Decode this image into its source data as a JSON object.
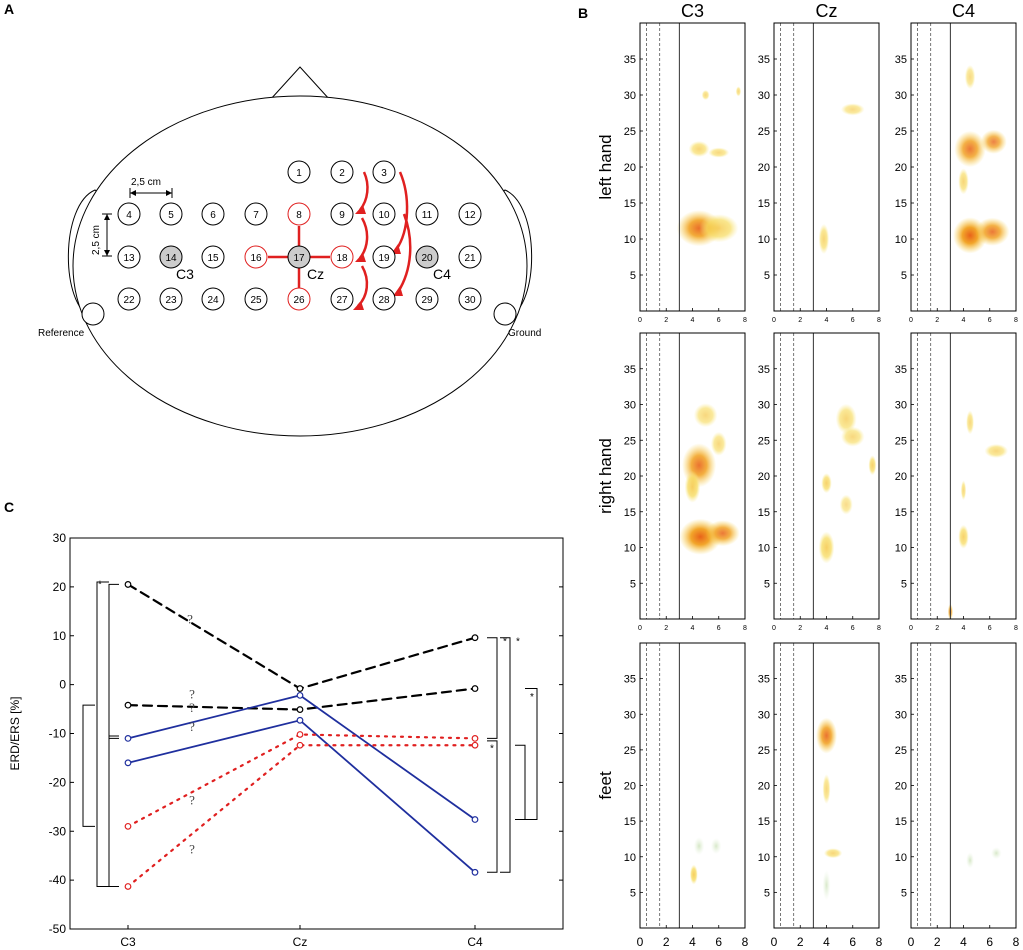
{
  "panel_labels": {
    "a": "A",
    "b": "B",
    "c": "C"
  },
  "panel_a": {
    "scale_h": "2,5 cm",
    "scale_v": "2,5 cm",
    "reference": "Reference",
    "ground": "Ground",
    "site_labels": {
      "c3": "C3",
      "cz": "Cz",
      "c4": "C4"
    },
    "electrodes": [
      {
        "n": "1",
        "row": 0,
        "col": 4,
        "style": "normal"
      },
      {
        "n": "2",
        "row": 0,
        "col": 5,
        "style": "normal"
      },
      {
        "n": "3",
        "row": 0,
        "col": 6,
        "style": "normal"
      },
      {
        "n": "4",
        "row": 1,
        "col": 0,
        "style": "normal"
      },
      {
        "n": "5",
        "row": 1,
        "col": 1,
        "style": "normal"
      },
      {
        "n": "6",
        "row": 1,
        "col": 2,
        "style": "normal"
      },
      {
        "n": "7",
        "row": 1,
        "col": 3,
        "style": "normal"
      },
      {
        "n": "8",
        "row": 1,
        "col": 4,
        "style": "red"
      },
      {
        "n": "9",
        "row": 1,
        "col": 5,
        "style": "normal"
      },
      {
        "n": "10",
        "row": 1,
        "col": 6,
        "style": "normal"
      },
      {
        "n": "11",
        "row": 1,
        "col": 7,
        "style": "normal"
      },
      {
        "n": "12",
        "row": 1,
        "col": 8,
        "style": "normal"
      },
      {
        "n": "13",
        "row": 2,
        "col": 0,
        "style": "normal"
      },
      {
        "n": "14",
        "row": 2,
        "col": 1,
        "style": "gray"
      },
      {
        "n": "15",
        "row": 2,
        "col": 2,
        "style": "normal"
      },
      {
        "n": "16",
        "row": 2,
        "col": 3,
        "style": "red"
      },
      {
        "n": "17",
        "row": 2,
        "col": 4,
        "style": "gray"
      },
      {
        "n": "18",
        "row": 2,
        "col": 5,
        "style": "red"
      },
      {
        "n": "19",
        "row": 2,
        "col": 6,
        "style": "normal"
      },
      {
        "n": "20",
        "row": 2,
        "col": 7,
        "style": "gray"
      },
      {
        "n": "21",
        "row": 2,
        "col": 8,
        "style": "normal"
      },
      {
        "n": "22",
        "row": 3,
        "col": 0,
        "style": "normal"
      },
      {
        "n": "23",
        "row": 3,
        "col": 1,
        "style": "normal"
      },
      {
        "n": "24",
        "row": 3,
        "col": 2,
        "style": "normal"
      },
      {
        "n": "25",
        "row": 3,
        "col": 3,
        "style": "normal"
      },
      {
        "n": "26",
        "row": 3,
        "col": 4,
        "style": "red"
      },
      {
        "n": "27",
        "row": 3,
        "col": 5,
        "style": "normal"
      },
      {
        "n": "28",
        "row": 3,
        "col": 6,
        "style": "normal"
      },
      {
        "n": "29",
        "row": 3,
        "col": 7,
        "style": "normal"
      },
      {
        "n": "30",
        "row": 3,
        "col": 8,
        "style": "normal"
      }
    ]
  },
  "chart_data": [
    {
      "type": "line",
      "panel": "C",
      "ylabel": "ERD/ERS [%]",
      "xlabel": "",
      "categories": [
        "C3",
        "Cz",
        "C4"
      ],
      "ylim": [
        -50,
        30
      ],
      "yticks": [
        "30",
        "20",
        "10",
        "0",
        "-10",
        "-20",
        "-30",
        "-40",
        "-50"
      ],
      "series": [
        {
          "name": "black-dashed-1",
          "color": "#000000",
          "dash": "dashed",
          "values": [
            20.5,
            -0.8,
            9.6
          ]
        },
        {
          "name": "black-dashed-2",
          "color": "#000000",
          "dash": "dashed",
          "values": [
            -4.2,
            -5.1,
            -0.8
          ]
        },
        {
          "name": "blue-solid-1",
          "color": "#1f2f9e",
          "dash": "solid",
          "values": [
            -11.0,
            -2.2,
            -27.6
          ]
        },
        {
          "name": "blue-solid-2",
          "color": "#1f2f9e",
          "dash": "solid",
          "values": [
            -16.0,
            -7.3,
            -38.4
          ]
        },
        {
          "name": "red-dotted-1",
          "color": "#e02020",
          "dash": "dotted",
          "values": [
            -29.0,
            -10.2,
            -11.0
          ]
        },
        {
          "name": "red-dotted-2",
          "color": "#e02020",
          "dash": "dotted",
          "values": [
            -41.3,
            -12.4,
            -12.4
          ]
        }
      ],
      "question_marks": [
        "?",
        "?",
        "?",
        "?",
        "?",
        "?"
      ],
      "significance_marks": [
        "*",
        "*",
        "*",
        "*",
        "*"
      ]
    },
    {
      "type": "heatmap",
      "panel": "B",
      "columns": [
        "C3",
        "Cz",
        "C4"
      ],
      "rows": [
        "left hand",
        "right hand",
        "feet"
      ],
      "ylim": [
        0,
        40
      ],
      "yticks": [
        "35",
        "30",
        "25",
        "20",
        "15",
        "10",
        "5"
      ],
      "xlim": [
        0,
        8
      ],
      "xticks": [
        "0",
        "2",
        "4",
        "6",
        "8"
      ],
      "vertical_lines": {
        "dashed": [
          0.5,
          1.5
        ],
        "solid": [
          3
        ]
      },
      "blobs": [
        {
          "row": 0,
          "col": 0,
          "t": 4.5,
          "f": 11.5,
          "w": 1.7,
          "h": 1.8,
          "i": 0.8
        },
        {
          "row": 0,
          "col": 0,
          "t": 6.0,
          "f": 11.5,
          "w": 1.5,
          "h": 1.4,
          "i": 0.45
        },
        {
          "row": 0,
          "col": 0,
          "t": 4.5,
          "f": 22.5,
          "w": 0.8,
          "h": 0.8,
          "i": 0.35
        },
        {
          "row": 0,
          "col": 0,
          "t": 6.0,
          "f": 22.0,
          "w": 0.8,
          "h": 0.5,
          "i": 0.3
        },
        {
          "row": 0,
          "col": 0,
          "t": 5.0,
          "f": 30.0,
          "w": 0.3,
          "h": 0.5,
          "i": 0.3
        },
        {
          "row": 0,
          "col": 0,
          "t": 7.5,
          "f": 30.5,
          "w": 0.2,
          "h": 0.5,
          "i": 0.3
        },
        {
          "row": 0,
          "col": 1,
          "t": 3.8,
          "f": 10.0,
          "w": 0.4,
          "h": 1.5,
          "i": 0.35
        },
        {
          "row": 0,
          "col": 1,
          "t": 6.0,
          "f": 28.0,
          "w": 0.9,
          "h": 0.6,
          "i": 0.25
        },
        {
          "row": 0,
          "col": 2,
          "t": 4.5,
          "f": 10.5,
          "w": 1.3,
          "h": 1.8,
          "i": 1.0
        },
        {
          "row": 0,
          "col": 2,
          "t": 6.2,
          "f": 11.0,
          "w": 1.3,
          "h": 1.4,
          "i": 0.7
        },
        {
          "row": 0,
          "col": 2,
          "t": 4.5,
          "f": 22.5,
          "w": 1.2,
          "h": 1.8,
          "i": 0.7
        },
        {
          "row": 0,
          "col": 2,
          "t": 6.3,
          "f": 23.5,
          "w": 1.0,
          "h": 1.2,
          "i": 0.6
        },
        {
          "row": 0,
          "col": 2,
          "t": 4.0,
          "f": 18.0,
          "w": 0.4,
          "h": 1.3,
          "i": 0.35
        },
        {
          "row": 0,
          "col": 2,
          "t": 4.5,
          "f": 32.5,
          "w": 0.4,
          "h": 1.2,
          "i": 0.25
        },
        {
          "row": 1,
          "col": 0,
          "t": 4.6,
          "f": 11.5,
          "w": 1.6,
          "h": 1.8,
          "i": 0.95
        },
        {
          "row": 1,
          "col": 0,
          "t": 6.3,
          "f": 12.0,
          "w": 1.3,
          "h": 1.3,
          "i": 0.7
        },
        {
          "row": 1,
          "col": 0,
          "t": 4.5,
          "f": 21.5,
          "w": 1.3,
          "h": 2.2,
          "i": 0.75
        },
        {
          "row": 1,
          "col": 0,
          "t": 4.0,
          "f": 18.5,
          "w": 0.6,
          "h": 1.6,
          "i": 0.55
        },
        {
          "row": 1,
          "col": 0,
          "t": 5.0,
          "f": 28.5,
          "w": 0.9,
          "h": 1.2,
          "i": 0.3
        },
        {
          "row": 1,
          "col": 0,
          "t": 6.0,
          "f": 24.5,
          "w": 0.6,
          "h": 1.2,
          "i": 0.3
        },
        {
          "row": 1,
          "col": 1,
          "t": 4.0,
          "f": 10.0,
          "w": 0.6,
          "h": 1.6,
          "i": 0.5
        },
        {
          "row": 1,
          "col": 1,
          "t": 4.0,
          "f": 19.0,
          "w": 0.4,
          "h": 1.0,
          "i": 0.45
        },
        {
          "row": 1,
          "col": 1,
          "t": 5.5,
          "f": 28.0,
          "w": 0.8,
          "h": 1.5,
          "i": 0.35
        },
        {
          "row": 1,
          "col": 1,
          "t": 6.0,
          "f": 25.5,
          "w": 0.9,
          "h": 1.0,
          "i": 0.3
        },
        {
          "row": 1,
          "col": 1,
          "t": 7.5,
          "f": 21.5,
          "w": 0.3,
          "h": 1.0,
          "i": 0.45
        },
        {
          "row": 1,
          "col": 1,
          "t": 5.5,
          "f": 16.0,
          "w": 0.5,
          "h": 1.0,
          "i": 0.2
        },
        {
          "row": 1,
          "col": 2,
          "t": 4.0,
          "f": 11.5,
          "w": 0.4,
          "h": 1.2,
          "i": 0.45
        },
        {
          "row": 1,
          "col": 2,
          "t": 4.5,
          "f": 27.5,
          "w": 0.3,
          "h": 1.2,
          "i": 0.3
        },
        {
          "row": 1,
          "col": 2,
          "t": 6.5,
          "f": 23.5,
          "w": 0.9,
          "h": 0.7,
          "i": 0.3
        },
        {
          "row": 1,
          "col": 2,
          "t": 4.0,
          "f": 18.0,
          "w": 0.2,
          "h": 1.0,
          "i": 0.3
        },
        {
          "row": 1,
          "col": 2,
          "t": 3.0,
          "f": 1.0,
          "w": 0.2,
          "h": 0.8,
          "i": 0.6
        },
        {
          "row": 2,
          "col": 0,
          "t": 4.1,
          "f": 7.5,
          "w": 0.3,
          "h": 1.0,
          "i": 0.55
        },
        {
          "row": 2,
          "col": 0,
          "t": 4.5,
          "f": 11.5,
          "w": 0.4,
          "h": 0.9,
          "i": 0.25,
          "green": true
        },
        {
          "row": 2,
          "col": 0,
          "t": 5.8,
          "f": 11.5,
          "w": 0.4,
          "h": 0.8,
          "i": 0.2,
          "green": true
        },
        {
          "row": 2,
          "col": 1,
          "t": 4.0,
          "f": 27.0,
          "w": 0.8,
          "h": 1.8,
          "i": 0.75
        },
        {
          "row": 2,
          "col": 1,
          "t": 4.0,
          "f": 19.5,
          "w": 0.3,
          "h": 1.5,
          "i": 0.3
        },
        {
          "row": 2,
          "col": 1,
          "t": 4.5,
          "f": 10.5,
          "w": 0.7,
          "h": 0.5,
          "i": 0.35
        },
        {
          "row": 2,
          "col": 1,
          "t": 4.0,
          "f": 6.0,
          "w": 0.3,
          "h": 1.5,
          "i": 0.2,
          "green": true
        },
        {
          "row": 2,
          "col": 2,
          "t": 4.5,
          "f": 9.5,
          "w": 0.3,
          "h": 0.8,
          "i": 0.25,
          "green": true
        },
        {
          "row": 2,
          "col": 2,
          "t": 6.5,
          "f": 10.5,
          "w": 0.4,
          "h": 0.6,
          "i": 0.2,
          "green": true
        }
      ]
    }
  ]
}
